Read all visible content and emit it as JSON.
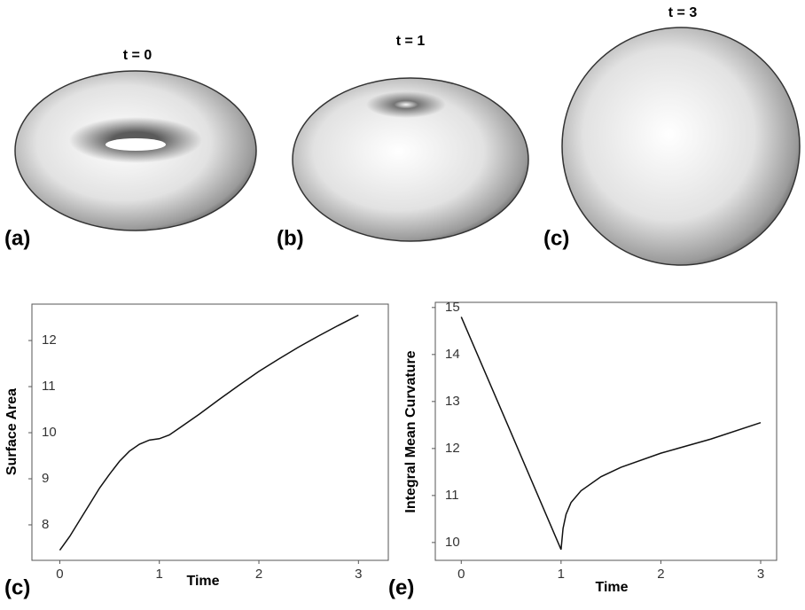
{
  "panels": [
    {
      "label": "(a)",
      "title": "t = 0"
    },
    {
      "label": "(b)",
      "title": "t = 1"
    },
    {
      "label": "(c)",
      "title": "t = 3"
    }
  ],
  "chart_data": [
    {
      "type": "line",
      "label": "(c)",
      "x_label": "Time",
      "y_label": "Surface Area",
      "x": [
        0,
        0.1,
        0.2,
        0.3,
        0.4,
        0.5,
        0.6,
        0.7,
        0.8,
        0.9,
        1.0,
        1.1,
        1.2,
        1.4,
        1.6,
        1.8,
        2.0,
        2.2,
        2.4,
        2.6,
        2.8,
        3.0
      ],
      "series": [
        {
          "color": "#111111",
          "values": [
            7.45,
            7.75,
            8.1,
            8.45,
            8.8,
            9.1,
            9.38,
            9.6,
            9.75,
            9.84,
            9.87,
            9.95,
            10.1,
            10.4,
            10.72,
            11.03,
            11.33,
            11.6,
            11.86,
            12.1,
            12.33,
            12.55
          ]
        }
      ],
      "xlim": [
        -0.28,
        3.3
      ],
      "ylim": [
        7.23,
        12.79
      ],
      "xticks": [
        0,
        1,
        2,
        3
      ],
      "yticks": [
        8,
        9,
        10,
        11,
        12
      ]
    },
    {
      "type": "line",
      "label": "(e)",
      "x_label": "Time",
      "y_label": "Integral Mean Curvature",
      "x": [
        0,
        0.5,
        1.0,
        1.02,
        1.05,
        1.1,
        1.2,
        1.4,
        1.6,
        2.0,
        2.5,
        3.0
      ],
      "series": [
        {
          "color": "#111111",
          "values": [
            14.8,
            12.33,
            9.85,
            10.3,
            10.6,
            10.85,
            11.1,
            11.4,
            11.6,
            11.9,
            12.2,
            12.55
          ]
        }
      ],
      "xlim": [
        -0.26,
        3.16
      ],
      "ylim": [
        9.62,
        15.11
      ],
      "xticks": [
        0,
        1,
        2,
        3
      ],
      "yticks": [
        10,
        11,
        12,
        13,
        14,
        15
      ]
    }
  ]
}
